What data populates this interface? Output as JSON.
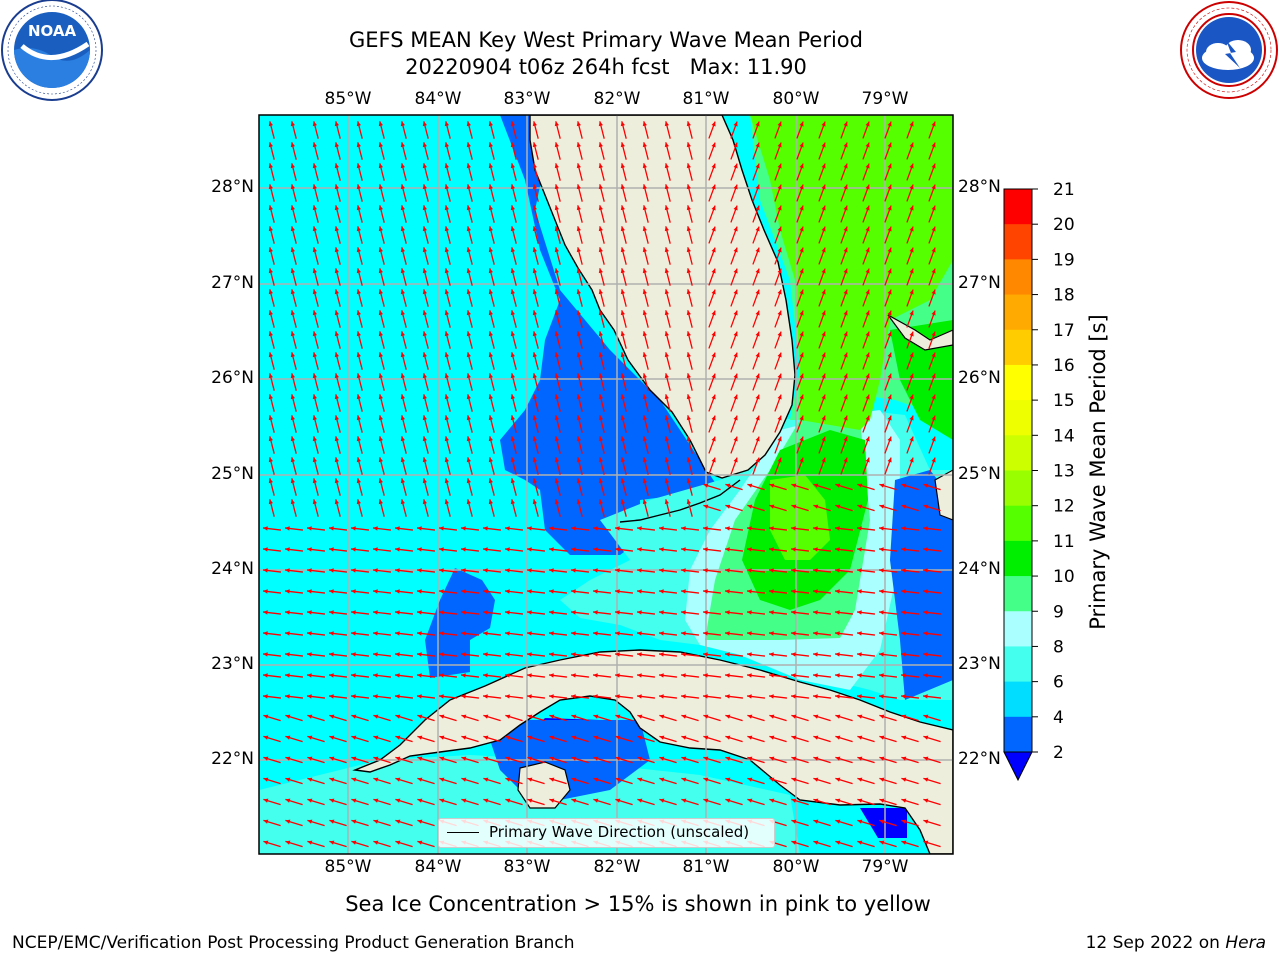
{
  "header": {
    "title_line1": "GEFS MEAN Key West Primary Wave Mean Period",
    "title_line2": "20220904 t06z 264h fcst   Max: 11.90"
  },
  "logos": {
    "noaa_text": "NOAA",
    "noaa_ring": "NATIONAL OCEANIC AND ATMOSPHERIC ADMINISTRATION · U.S. DEPARTMENT OF COMMERCE",
    "nws_ring": "NATIONAL WEATHER SERVICE"
  },
  "map": {
    "lon_labels": [
      "85°W",
      "84°W",
      "83°W",
      "82°W",
      "81°W",
      "80°W",
      "79°W"
    ],
    "lat_labels": [
      "28°N",
      "27°N",
      "26°N",
      "25°N",
      "24°N",
      "23°N",
      "22°N"
    ],
    "legend_label": "Primary Wave Direction (unscaled)",
    "colors": {
      "land": "#eeeedd",
      "arrow": "#ff0000",
      "grid": "#b0b0b0"
    }
  },
  "colorbar": {
    "title": "Primary Wave Mean Period [s]",
    "ticks": [
      "2",
      "4",
      "6",
      "8",
      "9",
      "10",
      "11",
      "12",
      "13",
      "14",
      "15",
      "16",
      "17",
      "18",
      "19",
      "20",
      "21"
    ],
    "colors": [
      "#0066ff",
      "#00ddff",
      "#44ffee",
      "#aaffff",
      "#44ff88",
      "#00ee00",
      "#55ff00",
      "#99ff00",
      "#ccff00",
      "#eeff00",
      "#ffff00",
      "#ffcc00",
      "#ffaa00",
      "#ff8800",
      "#ff4400",
      "#ff0000"
    ],
    "under_color": "#0000ff"
  },
  "footer": {
    "ice_note": "Sea Ice Concentration > 15% is shown in pink to yellow",
    "left": "NCEP/EMC/Verification Post Processing Product Generation Branch",
    "right_date": "12 Sep 2022 on",
    "right_host": "Hera"
  }
}
